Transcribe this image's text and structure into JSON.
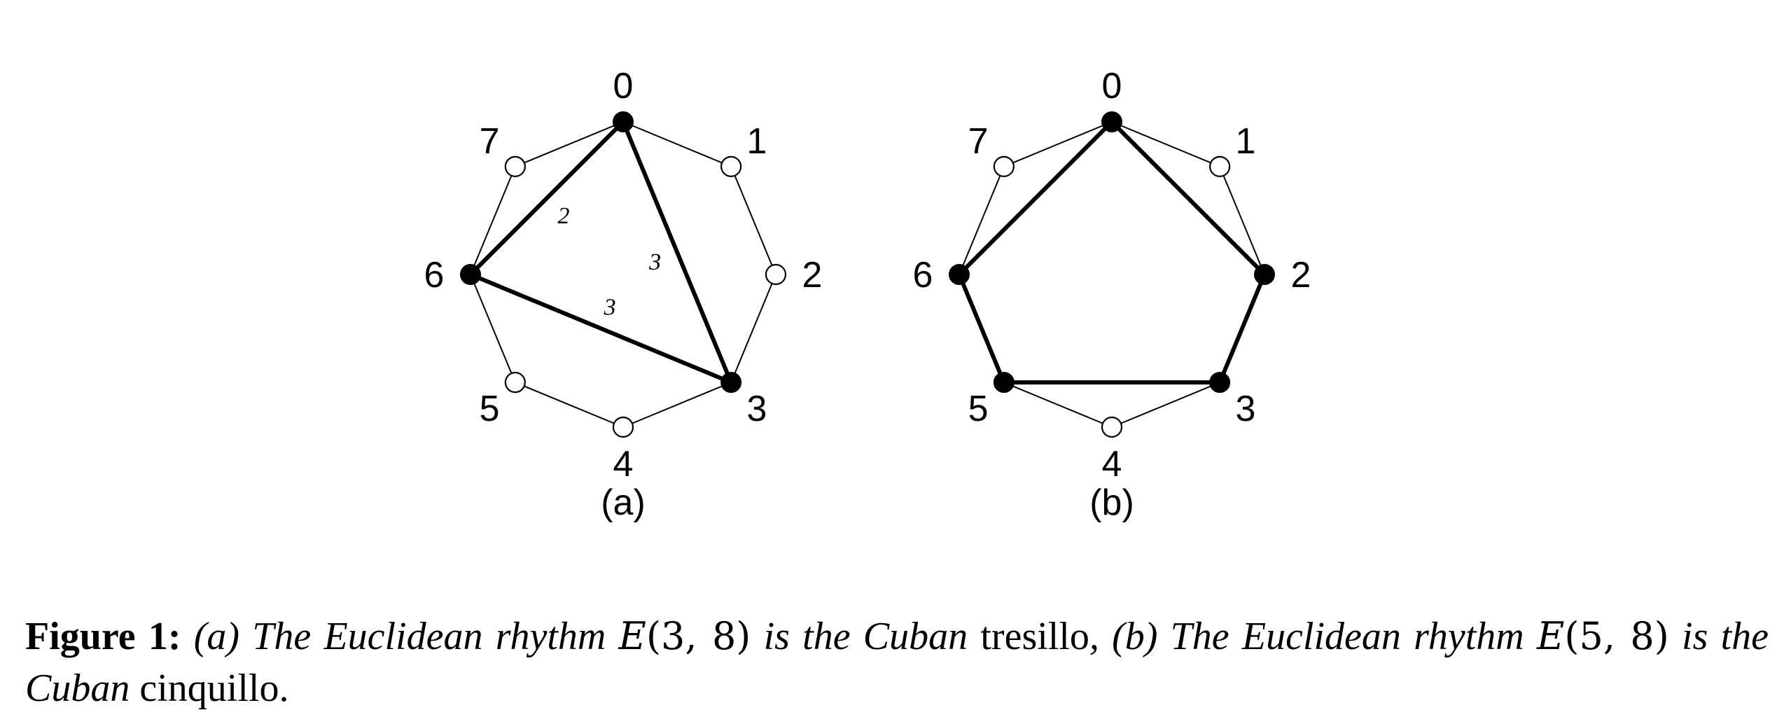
{
  "figure": {
    "panels": [
      {
        "id": "a",
        "label": "(a)",
        "node_labels": [
          "0",
          "1",
          "2",
          "3",
          "4",
          "5",
          "6",
          "7"
        ],
        "onsets": [
          0,
          3,
          6
        ],
        "polygon_edges": [
          {
            "from": 0,
            "to": 3,
            "interval": "3"
          },
          {
            "from": 3,
            "to": 6,
            "interval": "3"
          },
          {
            "from": 6,
            "to": 0,
            "interval": "2"
          }
        ]
      },
      {
        "id": "b",
        "label": "(b)",
        "node_labels": [
          "0",
          "1",
          "2",
          "3",
          "4",
          "5",
          "6",
          "7"
        ],
        "onsets": [
          0,
          2,
          3,
          5,
          6
        ],
        "polygon_edges": [
          {
            "from": 0,
            "to": 2
          },
          {
            "from": 2,
            "to": 3
          },
          {
            "from": 3,
            "to": 5
          },
          {
            "from": 5,
            "to": 6
          },
          {
            "from": 6,
            "to": 0
          }
        ]
      }
    ]
  },
  "caption": {
    "lead": "Figure 1:",
    "part_a": "(a) The Euclidean rhythm",
    "math_a_fn": "E",
    "math_a_args": "(3, 8)",
    "part_a2": "is the Cuban",
    "word_a": "tresillo",
    "part_b": ", (b) The Euclidean rhythm",
    "math_b_fn": "E",
    "math_b_args": "(5, 8)",
    "part_b2": "is the Cuban",
    "word_b": "cinquillo",
    "end": "."
  }
}
